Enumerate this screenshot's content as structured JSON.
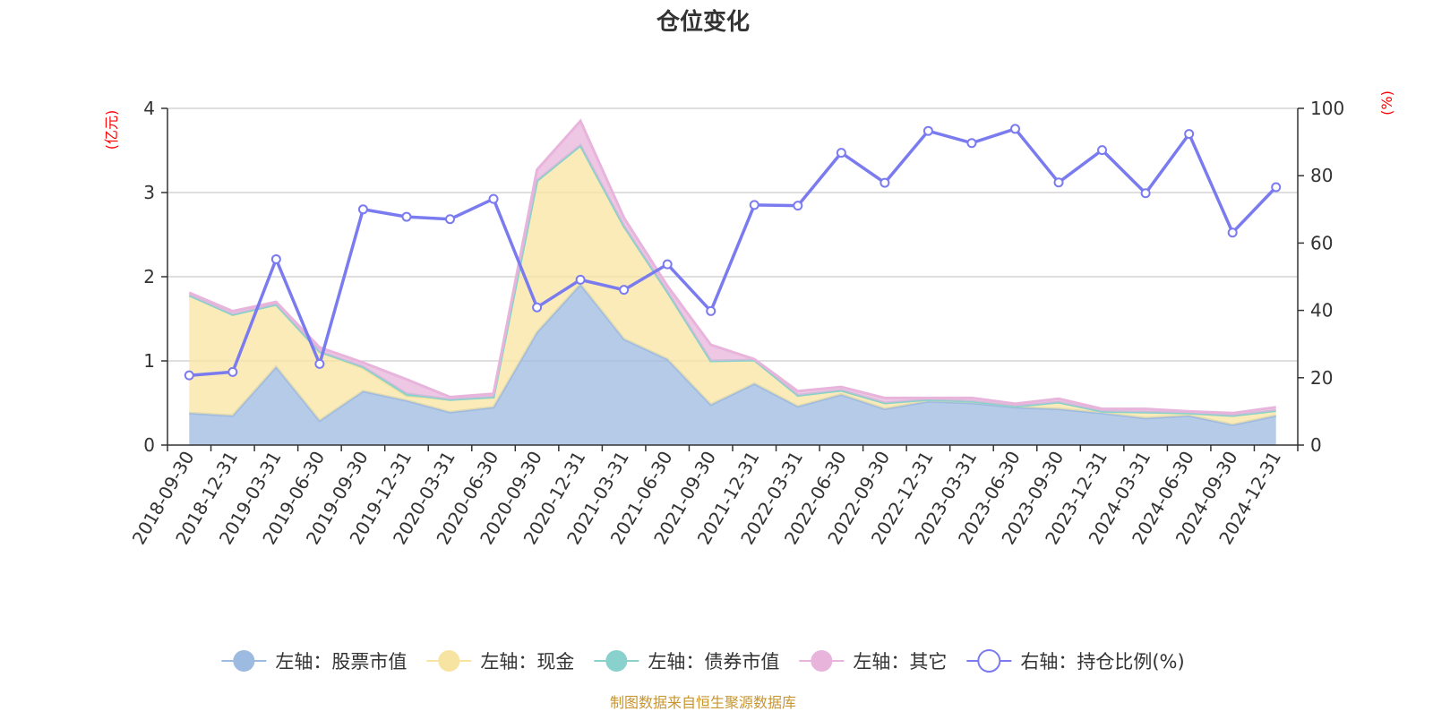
{
  "chart_data": {
    "type": "area",
    "title": "仓位变化",
    "left_axis": {
      "unit": "(亿元)",
      "ylim": [
        0,
        4
      ],
      "ticks": [
        0,
        1,
        2,
        3,
        4
      ]
    },
    "right_axis": {
      "unit": "(%)",
      "ylim": [
        0,
        100
      ],
      "ticks": [
        0,
        20,
        40,
        60,
        80,
        100
      ]
    },
    "grid": true,
    "legend_position": "bottom",
    "categories": [
      "2018-09-30",
      "2018-12-31",
      "2019-03-31",
      "2019-06-30",
      "2019-09-30",
      "2019-12-31",
      "2020-03-31",
      "2020-06-30",
      "2020-09-30",
      "2020-12-31",
      "2021-03-31",
      "2021-06-30",
      "2021-09-30",
      "2021-12-31",
      "2022-03-31",
      "2022-06-30",
      "2022-09-30",
      "2022-12-31",
      "2023-03-31",
      "2023-06-30",
      "2023-09-30",
      "2023-12-31",
      "2024-03-31",
      "2024-06-30",
      "2024-09-30",
      "2024-12-31"
    ],
    "series": [
      {
        "name": "左轴：股票市值",
        "axis": "left",
        "stack": true,
        "color": "#9dbae0",
        "values": [
          0.38,
          0.35,
          0.93,
          0.29,
          0.64,
          0.53,
          0.39,
          0.45,
          1.34,
          1.91,
          1.26,
          1.02,
          0.48,
          0.73,
          0.46,
          0.6,
          0.43,
          0.52,
          0.5,
          0.45,
          0.43,
          0.38,
          0.32,
          0.35,
          0.24,
          0.35
        ]
      },
      {
        "name": "左轴：现金",
        "axis": "left",
        "stack": true,
        "color": "#f8e4a2",
        "values": [
          1.4,
          1.2,
          0.74,
          0.82,
          0.27,
          0.05,
          0.15,
          0.12,
          1.8,
          1.65,
          1.34,
          0.8,
          0.52,
          0.28,
          0.13,
          0.05,
          0.07,
          0.02,
          0.02,
          0.01,
          0.08,
          0.02,
          0.07,
          0.03,
          0.11,
          0.06
        ]
      },
      {
        "name": "左轴：债券市值",
        "axis": "left",
        "stack": true,
        "color": "#88d1cc",
        "values": [
          0,
          0,
          0,
          0,
          0.02,
          0.03,
          0,
          0,
          0,
          0,
          0,
          0,
          0,
          0,
          0,
          0,
          0,
          0,
          0,
          0,
          0,
          0,
          0,
          0,
          0,
          0
        ]
      },
      {
        "name": "左轴：其它",
        "axis": "left",
        "stack": true,
        "color": "#e8b4dc",
        "values": [
          0.03,
          0.04,
          0.03,
          0.05,
          0.05,
          0.17,
          0.03,
          0.04,
          0.13,
          0.29,
          0.1,
          0.07,
          0.19,
          0.01,
          0.05,
          0.04,
          0.06,
          0.02,
          0.04,
          0.03,
          0.04,
          0.03,
          0.04,
          0.02,
          0.03,
          0.04
        ]
      },
      {
        "name": "右轴：持仓比例(%)",
        "axis": "right",
        "type": "line",
        "color": "#7b7bf0",
        "values": [
          20.7,
          21.7,
          55.2,
          24.1,
          70.0,
          67.8,
          67.1,
          73.1,
          40.9,
          49.1,
          46.1,
          53.7,
          39.8,
          71.3,
          71.1,
          86.8,
          77.9,
          93.3,
          89.7,
          93.9,
          78.0,
          87.6,
          74.8,
          92.4,
          63.1,
          76.6
        ]
      }
    ]
  },
  "source": "制图数据来自恒生聚源数据库"
}
